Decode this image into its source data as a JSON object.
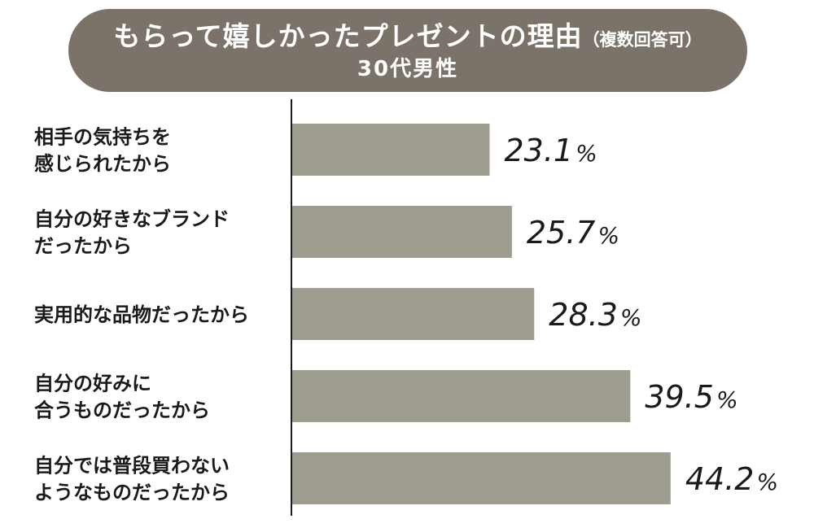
{
  "chart_data": {
    "type": "bar",
    "orientation": "horizontal",
    "title": "もらって嬉しかったプレゼントの理由",
    "title_note": "（複数回答可）",
    "subtitle": "30代男性",
    "categories": [
      [
        "相手の気持ちを",
        "感じられたから"
      ],
      [
        "自分の好きなブランド",
        "だったから"
      ],
      [
        "実用的な品物だったから"
      ],
      [
        "自分の好みに",
        "合うものだったから"
      ],
      [
        "自分では普段買わない",
        "ようなものだったから"
      ]
    ],
    "values": [
      23.1,
      25.7,
      28.3,
      39.5,
      44.2
    ],
    "value_labels": [
      "23.1",
      "25.7",
      "28.3",
      "39.5",
      "44.2"
    ],
    "unit": "%",
    "xlim": [
      0,
      50
    ],
    "grid": false,
    "legend": "none",
    "colors": {
      "bar": "#9f9d8f",
      "banner": "#7b736a",
      "axis": "#1a1a1a",
      "text": "#1a1a1a",
      "banner_text": "#ffffff"
    }
  }
}
